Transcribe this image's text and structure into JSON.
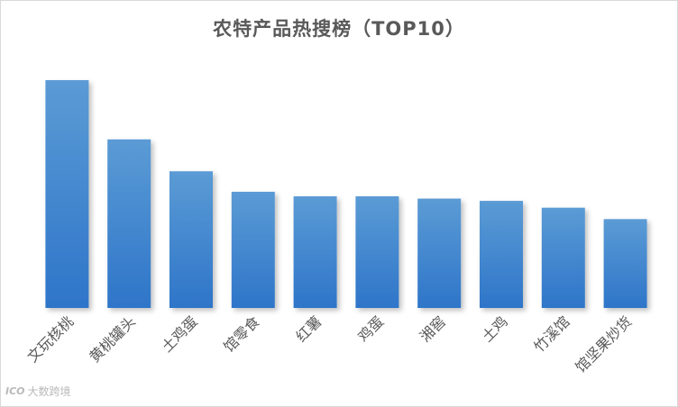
{
  "chart_data": {
    "type": "bar",
    "title": "农特产品热搜榜（TOP10）",
    "categories": [
      "文玩核桃",
      "黄桃罐头",
      "土鸡蛋",
      "馆零食",
      "红薯",
      "鸡蛋",
      "湘窖",
      "土鸡",
      "竹溪馆",
      "馆坚果炒货"
    ],
    "values": [
      100,
      74,
      60,
      51,
      49,
      49,
      48,
      47,
      44,
      39
    ],
    "xlabel": "",
    "ylabel": "",
    "ylim": [
      0,
      100
    ],
    "grid": false,
    "legend": "none",
    "bar_color_top": "#5b9bd5",
    "bar_color_bottom": "#2e75c9"
  },
  "watermark": {
    "logo": "ICO",
    "text": "大数跨境"
  }
}
